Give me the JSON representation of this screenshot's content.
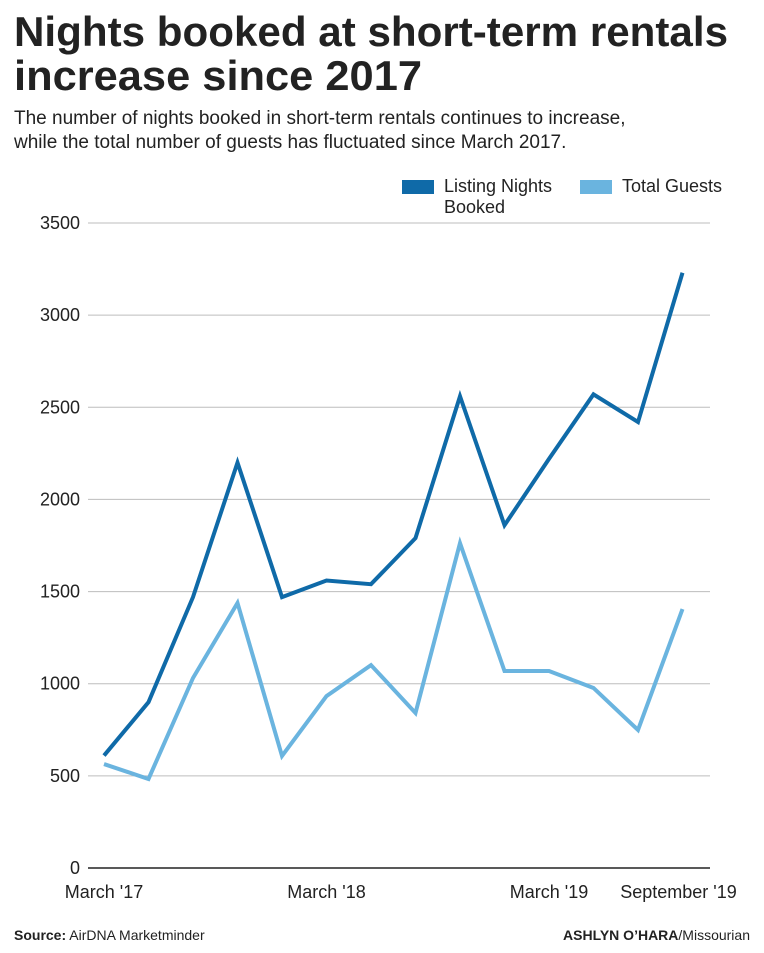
{
  "chart_data": {
    "type": "line",
    "title": [
      "Nights booked at short-term rentals",
      "increase since 2017"
    ],
    "subtitle": [
      "The number of nights booked in short-term rentals continues to increase,",
      "while the total number of guests has fluctuated since March 2017."
    ],
    "categories": [
      "March '17",
      null,
      null,
      null,
      null,
      "March '18",
      null,
      null,
      null,
      null,
      "March '19",
      null,
      null,
      "September '19"
    ],
    "series": [
      {
        "name": [
          "Listing Nights",
          "Booked"
        ],
        "color": "#0f6aa8",
        "values": [
          610,
          900,
          1470,
          2200,
          1470,
          1560,
          1540,
          1790,
          2560,
          1860,
          2220,
          2570,
          2420,
          3230
        ]
      },
      {
        "name": [
          "Total Guests"
        ],
        "color": "#6ab4df",
        "values": [
          564,
          483,
          1031,
          1438,
          608,
          933,
          1101,
          841,
          1763,
          1069,
          1069,
          977,
          749,
          1405
        ]
      }
    ],
    "ylim": [
      0,
      3500
    ],
    "yticks": [
      0,
      500,
      1000,
      1500,
      2000,
      2500,
      3000,
      3500
    ],
    "grid": true,
    "legend": "top-right",
    "source_label": "Source:",
    "source": "AirDNA Marketminder",
    "credit_name": "ASHLYN O’HARA",
    "credit_org": "/Missourian"
  }
}
